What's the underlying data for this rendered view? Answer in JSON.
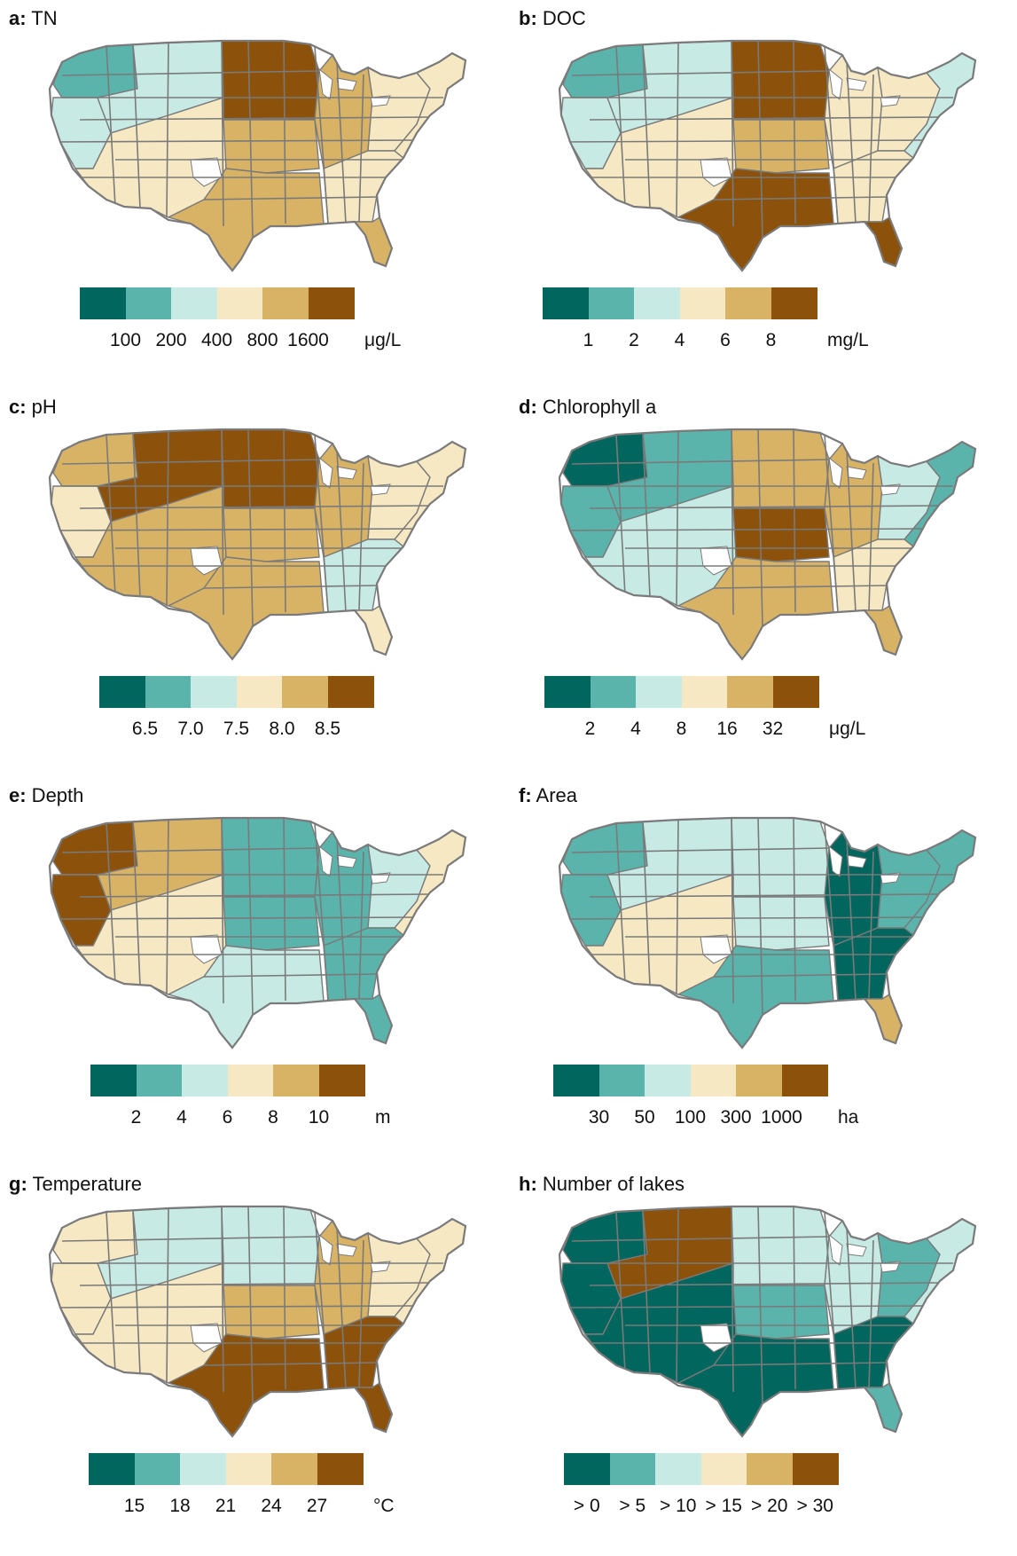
{
  "palette": [
    "#01665e",
    "#5ab4ac",
    "#c7eae5",
    "#f6e8c3",
    "#d8b365",
    "#8c510a"
  ],
  "panels": [
    {
      "letter": "a:",
      "title": "TN",
      "unit": "μg/L",
      "ticks": [
        "100",
        "200",
        "400",
        "800",
        "1600"
      ],
      "tick_mode": "boundary",
      "regions": {
        "northwest": 1,
        "pacific": 2,
        "mountain": 2,
        "southwest": 3,
        "northplains": 5,
        "centralplains": 4,
        "texas": 4,
        "midwest": 4,
        "greatlakes": 3,
        "southeast": 3,
        "florida": 4,
        "northeast": 3
      }
    },
    {
      "letter": "b:",
      "title": "DOC",
      "unit": "mg/L",
      "ticks": [
        "1",
        "2",
        "4",
        "6",
        "8"
      ],
      "tick_mode": "boundary",
      "regions": {
        "northwest": 1,
        "pacific": 2,
        "mountain": 2,
        "southwest": 3,
        "northplains": 5,
        "centralplains": 4,
        "texas": 5,
        "midwest": 3,
        "greatlakes": 3,
        "southeast": 3,
        "florida": 5,
        "northeast": 2
      }
    },
    {
      "letter": "c:",
      "title": "pH",
      "unit": "",
      "ticks": [
        "6.5",
        "7.0",
        "7.5",
        "8.0",
        "8.5"
      ],
      "tick_mode": "boundary",
      "regions": {
        "northwest": 4,
        "pacific": 3,
        "mountain": 5,
        "southwest": 4,
        "northplains": 5,
        "centralplains": 4,
        "texas": 4,
        "midwest": 4,
        "greatlakes": 3,
        "southeast": 2,
        "florida": 3,
        "northeast": 3
      }
    },
    {
      "letter": "d:",
      "title": "Chlorophyll a",
      "unit": "μg/L",
      "ticks": [
        "2",
        "4",
        "8",
        "16",
        "32"
      ],
      "tick_mode": "boundary",
      "regions": {
        "northwest": 0,
        "pacific": 1,
        "mountain": 1,
        "southwest": 2,
        "northplains": 4,
        "centralplains": 5,
        "texas": 4,
        "midwest": 4,
        "greatlakes": 2,
        "southeast": 3,
        "florida": 4,
        "northeast": 1
      }
    },
    {
      "letter": "e:",
      "title": "Depth",
      "unit": "m",
      "ticks": [
        "2",
        "4",
        "6",
        "8",
        "10"
      ],
      "tick_mode": "boundary",
      "regions": {
        "northwest": 5,
        "pacific": 5,
        "mountain": 4,
        "southwest": 3,
        "northplains": 1,
        "centralplains": 1,
        "texas": 2,
        "midwest": 1,
        "greatlakes": 2,
        "southeast": 1,
        "florida": 1,
        "northeast": 3
      }
    },
    {
      "letter": "f:",
      "title": "Area",
      "unit": "ha",
      "ticks": [
        "30",
        "50",
        "100",
        "300",
        "1000"
      ],
      "tick_mode": "boundary",
      "regions": {
        "northwest": 1,
        "pacific": 1,
        "mountain": 2,
        "southwest": 3,
        "northplains": 2,
        "centralplains": 2,
        "texas": 1,
        "midwest": 0,
        "greatlakes": 1,
        "southeast": 0,
        "florida": 4,
        "northeast": 1
      }
    },
    {
      "letter": "g:",
      "title": "Temperature",
      "unit": "°C",
      "ticks": [
        "15",
        "18",
        "21",
        "24",
        "27"
      ],
      "tick_mode": "boundary",
      "regions": {
        "northwest": 3,
        "pacific": 3,
        "mountain": 2,
        "southwest": 3,
        "northplains": 2,
        "centralplains": 4,
        "texas": 5,
        "midwest": 4,
        "greatlakes": 3,
        "southeast": 5,
        "florida": 5,
        "northeast": 3
      }
    },
    {
      "letter": "h:",
      "title": "Number of lakes",
      "unit": "",
      "ticks": [
        "> 0",
        "> 5",
        "> 10",
        "> 15",
        "> 20",
        "> 30"
      ],
      "tick_mode": "center",
      "regions": {
        "northwest": 0,
        "pacific": 0,
        "mountain": 5,
        "southwest": 0,
        "northplains": 2,
        "centralplains": 1,
        "texas": 0,
        "midwest": 2,
        "greatlakes": 1,
        "southeast": 0,
        "florida": 1,
        "northeast": 2
      }
    }
  ]
}
